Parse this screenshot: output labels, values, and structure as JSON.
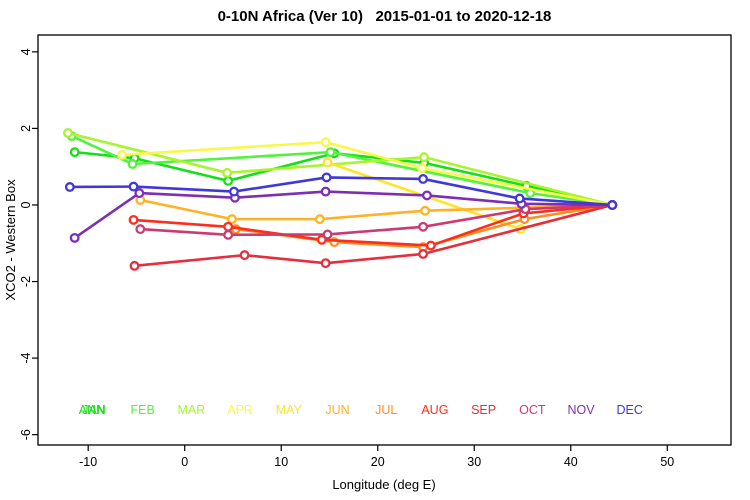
{
  "title": "0-10N Africa (Ver 10)   2015-01-01 to 2020-12-18",
  "chart_data": {
    "type": "line",
    "title": "0-10N Africa (Ver 10)   2015-01-01 to 2020-12-18",
    "xlabel": "Longitude (deg E)",
    "ylabel": "XCO2 - Western Box",
    "xlim": [
      -15.2,
      56.6
    ],
    "ylim": [
      -6.27,
      4.44
    ],
    "x_ticks": [
      -10,
      0,
      10,
      20,
      30,
      40,
      50
    ],
    "y_ticks": [
      -6,
      -4,
      -2,
      0,
      2,
      4
    ],
    "grid": false,
    "marker": "open-circle",
    "line_width": 2.6,
    "series": [
      {
        "name": "JAN",
        "color": "#14E014",
        "x": [
          -11.4,
          -5.2,
          4.5,
          15.5,
          24.8,
          35.4,
          44.3
        ],
        "y": [
          1.38,
          1.22,
          0.63,
          1.35,
          1.1,
          0.5,
          0.0
        ]
      },
      {
        "name": "FEB",
        "color": "#52F23D",
        "x": [
          -11.7,
          -5.4,
          15.1,
          35.8,
          44.3
        ],
        "y": [
          1.8,
          1.07,
          1.38,
          0.31,
          0.0
        ]
      },
      {
        "name": "MAR",
        "color": "#A8F431",
        "x": [
          -12.1,
          4.4,
          24.8,
          44.3
        ],
        "y": [
          1.88,
          0.84,
          1.25,
          0.0
        ]
      },
      {
        "name": "APR",
        "color": "#F7F84A",
        "x": [
          -6.5,
          14.6,
          24.6,
          44.3
        ],
        "y": [
          1.31,
          1.64,
          0.96,
          0.0
        ]
      },
      {
        "name": "MAY",
        "color": "#FFE428",
        "x": [
          14.8,
          34.8,
          44.3
        ],
        "y": [
          1.11,
          -0.63,
          0.0
        ]
      },
      {
        "name": "JUN",
        "color": "#FFB224",
        "x": [
          -4.6,
          4.9,
          14.0,
          24.9,
          44.3
        ],
        "y": [
          0.13,
          -0.37,
          -0.37,
          -0.15,
          0.0
        ]
      },
      {
        "name": "JUL",
        "color": "#FF8D1E",
        "x": [
          5.3,
          15.5,
          24.7,
          35.2,
          44.3
        ],
        "y": [
          -0.63,
          -0.97,
          -1.1,
          -0.37,
          0.0
        ]
      },
      {
        "name": "AUG",
        "color": "#FB2F1D",
        "x": [
          -5.3,
          4.5,
          14.2,
          25.5,
          35.1,
          44.3
        ],
        "y": [
          -0.39,
          -0.57,
          -0.91,
          -1.06,
          -0.22,
          0.0
        ]
      },
      {
        "name": "SEP",
        "color": "#E62E3E",
        "x": [
          -5.2,
          6.2,
          14.6,
          24.7,
          44.3
        ],
        "y": [
          -1.59,
          -1.31,
          -1.52,
          -1.28,
          0.0
        ]
      },
      {
        "name": "OCT",
        "color": "#CC3A72",
        "x": [
          -4.6,
          4.5,
          14.8,
          24.7,
          35.3,
          44.3
        ],
        "y": [
          -0.63,
          -0.78,
          -0.77,
          -0.57,
          -0.11,
          0.0
        ]
      },
      {
        "name": "NOV",
        "color": "#7D2FB4",
        "x": [
          -11.4,
          -4.7,
          5.2,
          14.6,
          25.1,
          34.9,
          44.3
        ],
        "y": [
          -0.86,
          0.31,
          0.19,
          0.35,
          0.25,
          0.03,
          0.0
        ]
      },
      {
        "name": "DEC",
        "color": "#4038D8",
        "x": [
          -11.9,
          -5.3,
          5.1,
          14.7,
          24.7,
          34.7,
          44.3
        ],
        "y": [
          0.47,
          0.48,
          0.35,
          0.72,
          0.68,
          0.17,
          0.0
        ]
      }
    ],
    "legend": {
      "position": "bottom-inside",
      "y_value": -5.35,
      "overlap_label": {
        "label": "ANN",
        "color": "#14E014"
      },
      "items": [
        {
          "label": "JAN",
          "color": "#14E014"
        },
        {
          "label": "FEB",
          "color": "#52F23D"
        },
        {
          "label": "MAR",
          "color": "#A8F431"
        },
        {
          "label": "APR",
          "color": "#F7F84A"
        },
        {
          "label": "MAY",
          "color": "#FFE428"
        },
        {
          "label": "JUN",
          "color": "#FFB224"
        },
        {
          "label": "JUL",
          "color": "#FF8D1E"
        },
        {
          "label": "AUG",
          "color": "#FB2F1D"
        },
        {
          "label": "SEP",
          "color": "#E62E3E"
        },
        {
          "label": "OCT",
          "color": "#CC3A72"
        },
        {
          "label": "NOV",
          "color": "#7D2FB4"
        },
        {
          "label": "DEC",
          "color": "#4038D8"
        }
      ]
    }
  }
}
